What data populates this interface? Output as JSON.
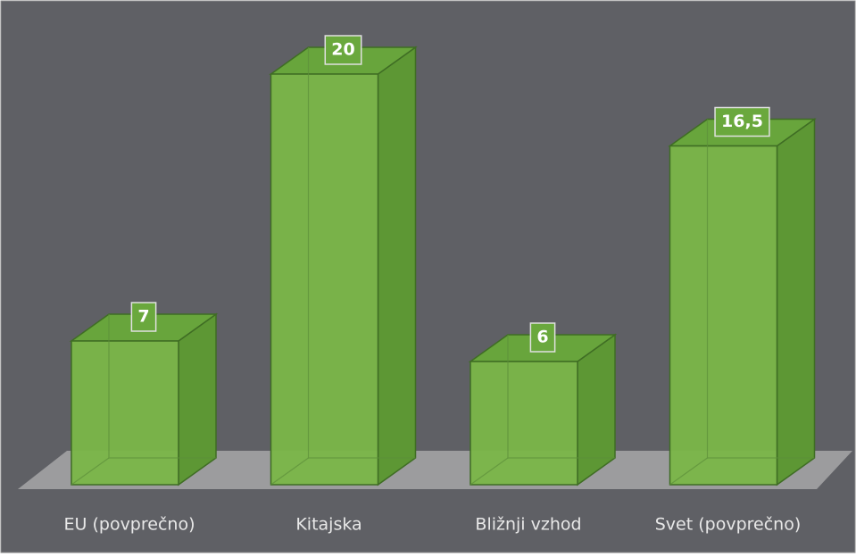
{
  "chart_data": {
    "type": "bar",
    "categories": [
      "EU (povprečno)",
      "Kitajska",
      "Bližnji vzhod",
      "Svet (povprečno)"
    ],
    "values": [
      7,
      20,
      6,
      16.5
    ],
    "value_labels": [
      "7",
      "20",
      "6",
      "16,5"
    ],
    "color": "#7ab648"
  }
}
